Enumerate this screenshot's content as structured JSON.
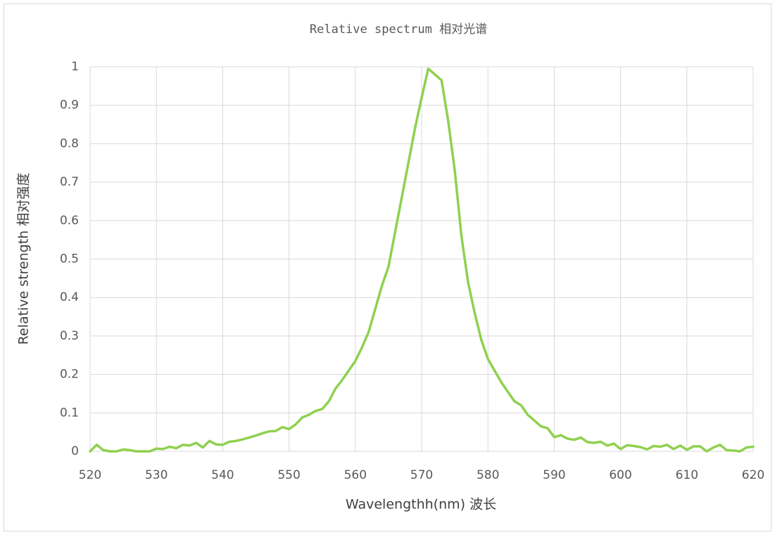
{
  "chart_data": {
    "type": "line",
    "title": "Relative spectrum 相对光谱",
    "x_label": "Wavelengthh(nm) 波长",
    "y_label": "Relative strength 相对强度",
    "x": [
      520,
      521,
      522,
      523,
      524,
      525,
      526,
      527,
      528,
      529,
      530,
      531,
      532,
      533,
      534,
      535,
      536,
      537,
      538,
      539,
      540,
      541,
      542,
      543,
      544,
      545,
      546,
      547,
      548,
      549,
      550,
      551,
      552,
      553,
      554,
      555,
      556,
      557,
      558,
      559,
      560,
      561,
      562,
      563,
      564,
      565,
      566,
      567,
      568,
      569,
      570,
      571,
      572,
      573,
      574,
      575,
      576,
      577,
      578,
      579,
      580,
      581,
      582,
      583,
      584,
      585,
      586,
      587,
      588,
      589,
      590,
      591,
      592,
      593,
      594,
      595,
      596,
      597,
      598,
      599,
      600,
      601,
      602,
      603,
      604,
      605,
      606,
      607,
      608,
      609,
      610,
      611,
      612,
      613,
      614,
      615,
      616,
      617,
      618,
      619,
      620
    ],
    "series": [
      {
        "color": "#8fd14f",
        "values": [
          0,
          0.017,
          0.003,
          0,
          0,
          0.005,
          0.003,
          0,
          0,
          0,
          0.007,
          0.006,
          0.012,
          0.008,
          0.017,
          0.015,
          0.022,
          0.01,
          0.027,
          0.018,
          0.017,
          0.025,
          0.027,
          0.031,
          0.036,
          0.041,
          0.047,
          0.052,
          0.053,
          0.063,
          0.058,
          0.07,
          0.088,
          0.095,
          0.105,
          0.11,
          0.13,
          0.163,
          0.185,
          0.21,
          0.235,
          0.27,
          0.31,
          0.37,
          0.43,
          0.48,
          0.57,
          0.66,
          0.75,
          0.84,
          0.92,
          0.995,
          0.98,
          0.965,
          0.86,
          0.73,
          0.56,
          0.44,
          0.36,
          0.29,
          0.24,
          0.21,
          0.18,
          0.155,
          0.13,
          0.12,
          0.095,
          0.08,
          0.065,
          0.06,
          0.037,
          0.042,
          0.033,
          0.03,
          0.036,
          0.024,
          0.022,
          0.025,
          0.015,
          0.02,
          0.006,
          0.016,
          0.014,
          0.011,
          0.005,
          0.014,
          0.012,
          0.017,
          0.006,
          0.015,
          0.004,
          0.013,
          0.013,
          0,
          0.01,
          0.017,
          0.003,
          0.002,
          0,
          0.01,
          0.012
        ]
      }
    ],
    "xlim": [
      520,
      620
    ],
    "xticks": [
      520,
      530,
      540,
      550,
      560,
      570,
      580,
      590,
      600,
      610,
      620
    ],
    "ylim": [
      0,
      1
    ],
    "yticks": [
      0,
      0.1,
      0.2,
      0.3,
      0.4,
      0.5,
      0.6,
      0.7,
      0.8,
      0.9,
      1
    ],
    "grid": true
  }
}
